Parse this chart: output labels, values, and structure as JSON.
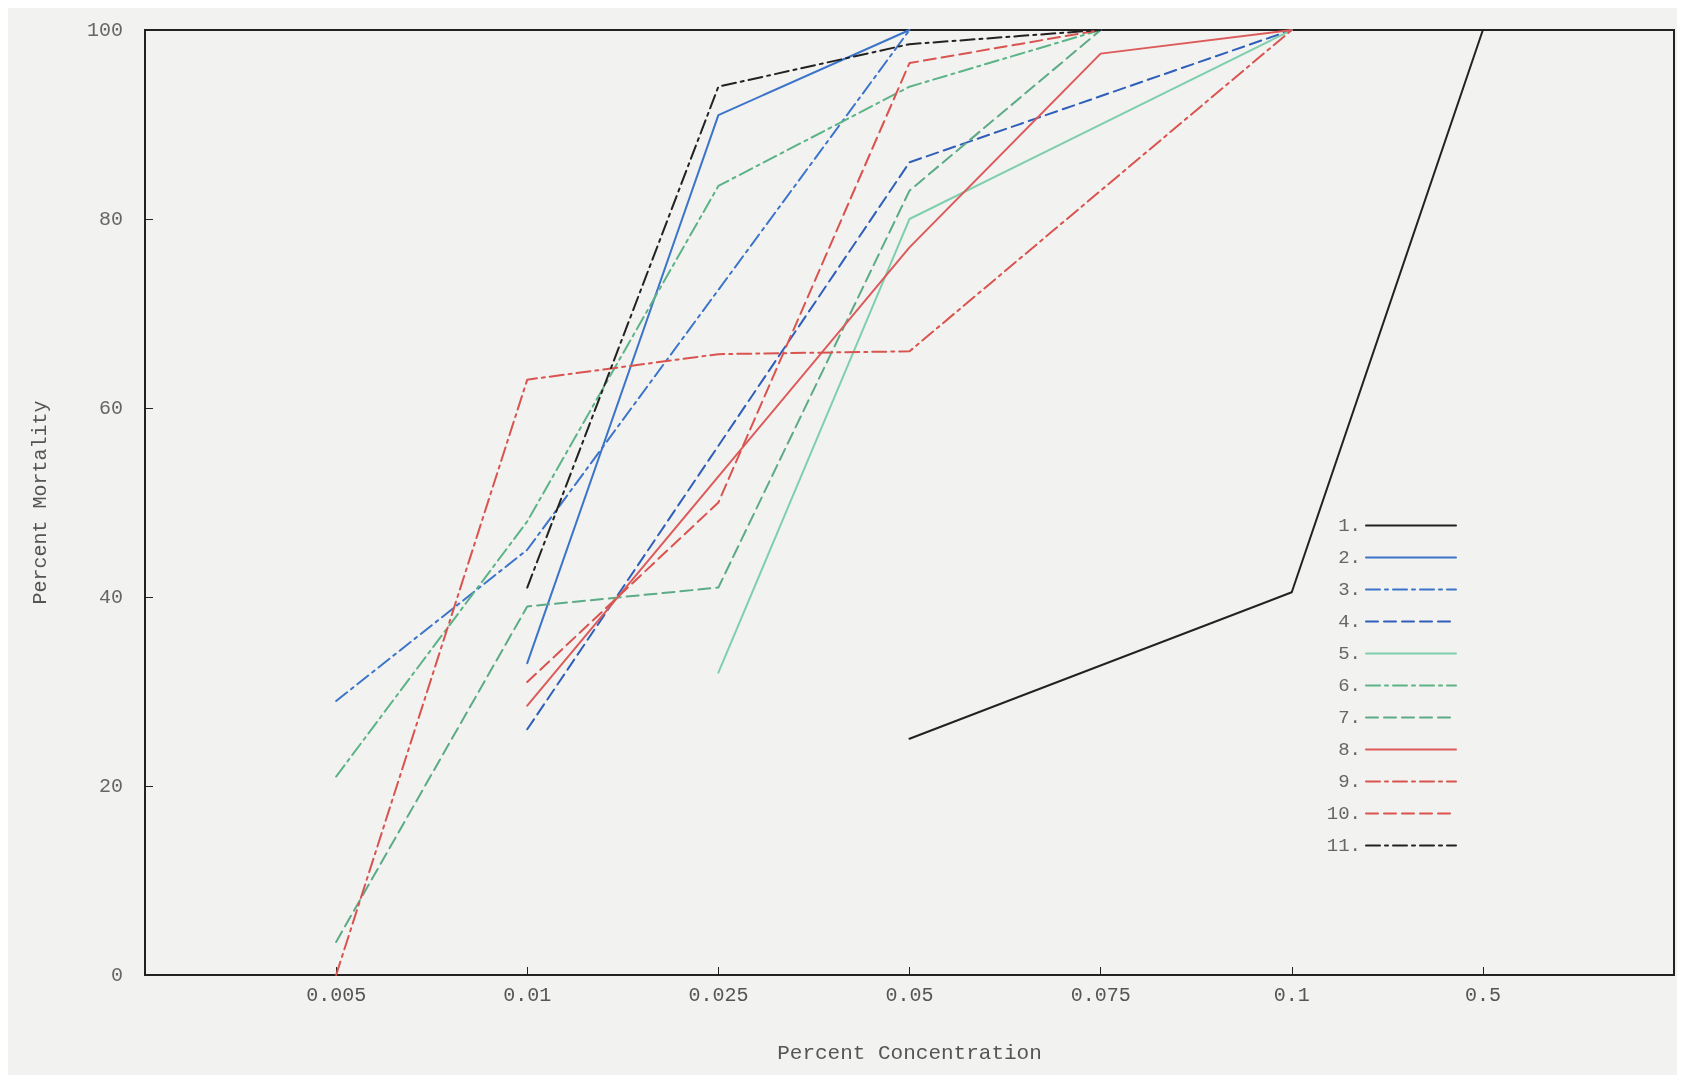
{
  "chart_data": {
    "type": "line",
    "xlabel": "Percent Concentration",
    "ylabel": "Percent Mortality",
    "categories": [
      null,
      "0.005",
      "0.01",
      "0.025",
      "0.05",
      "0.075",
      "0.1",
      "0.5",
      null
    ],
    "ylim": [
      0,
      100
    ],
    "yticks": [
      0,
      20,
      40,
      60,
      80,
      100
    ],
    "grid": false,
    "legend": "bottom right",
    "marker": "none",
    "series": [
      {
        "name": "1.",
        "color": "#222222",
        "line_style": "solid",
        "values": [
          null,
          null,
          null,
          null,
          25,
          null,
          40.5,
          100,
          null
        ]
      },
      {
        "name": "2.",
        "color": "#3b74c9",
        "line_style": "solid",
        "values": [
          null,
          null,
          33,
          91,
          100,
          null,
          null,
          null,
          null
        ]
      },
      {
        "name": "3.",
        "color": "#3b74c9",
        "line_style": "dashdot",
        "values": [
          null,
          29,
          45,
          null,
          100,
          null,
          null,
          null,
          null
        ]
      },
      {
        "name": "4.",
        "color": "#2f5fb8",
        "line_style": "dashed",
        "values": [
          null,
          null,
          26,
          null,
          86,
          null,
          100,
          null,
          null
        ]
      },
      {
        "name": "5.",
        "color": "#7fcfae",
        "line_style": "solid",
        "values": [
          null,
          null,
          null,
          32,
          80,
          null,
          100,
          null,
          null
        ]
      },
      {
        "name": "6.",
        "color": "#5cb386",
        "line_style": "dashdot",
        "values": [
          null,
          21,
          48,
          83.5,
          94,
          100,
          null,
          null,
          null
        ]
      },
      {
        "name": "7.",
        "color": "#5cab86",
        "line_style": "dashed",
        "values": [
          null,
          3.5,
          39,
          41,
          83,
          100,
          null,
          null,
          null
        ]
      },
      {
        "name": "8.",
        "color": "#dd5a5a",
        "line_style": "solid",
        "values": [
          null,
          null,
          28.5,
          null,
          77,
          97.5,
          100,
          null,
          null
        ]
      },
      {
        "name": "9.",
        "color": "#d9534f",
        "line_style": "dashdot",
        "values": [
          null,
          0,
          63,
          65.7,
          66,
          null,
          100,
          null,
          null
        ]
      },
      {
        "name": "10.",
        "color": "#d9534f",
        "line_style": "dashed",
        "values": [
          null,
          null,
          31,
          50,
          96.5,
          100,
          null,
          null,
          null
        ]
      },
      {
        "name": "11.",
        "color": "#222222",
        "line_style": "dashdot",
        "values": [
          null,
          null,
          41,
          94,
          98.5,
          100,
          null,
          null,
          null
        ]
      }
    ]
  }
}
